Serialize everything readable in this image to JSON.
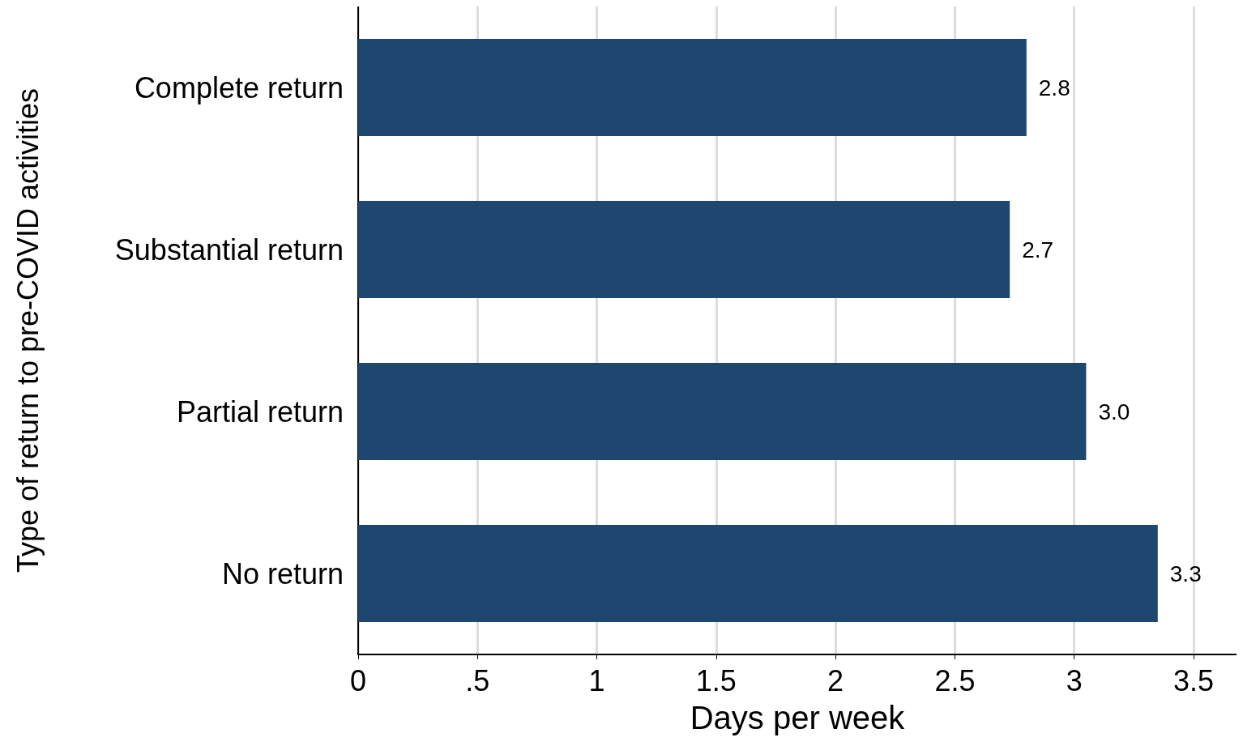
{
  "chart_data": {
    "type": "bar",
    "orientation": "horizontal",
    "xlabel": "Days per week",
    "ylabel": "Type of return to pre-COVID activities",
    "categories": [
      "Complete return",
      "Substantial return",
      "Partial return",
      "No return"
    ],
    "values": [
      2.8,
      2.73,
      3.05,
      3.35
    ],
    "value_labels": [
      "2.8",
      "2.7",
      "3.0",
      "3.3"
    ],
    "color": "#1d476e",
    "xlim": [
      0,
      3.68
    ],
    "xticks": [
      0,
      {
        "value": 0.5,
        "label": ".5"
      },
      1,
      1.5,
      2,
      2.5,
      3,
      3.5
    ],
    "grid": "x"
  }
}
